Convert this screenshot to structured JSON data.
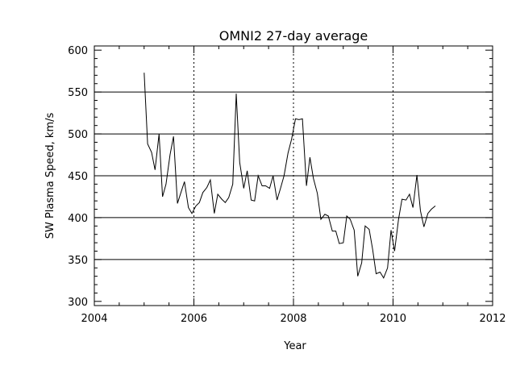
{
  "chart_data": {
    "type": "line",
    "title": "OMNI2 27-day average",
    "xlabel": "Year",
    "ylabel": "SW Plasma Speed, km/s",
    "xlim": [
      2004,
      2012
    ],
    "ylim": [
      295,
      605
    ],
    "x_ticks": [
      2004,
      2006,
      2008,
      2010,
      2012
    ],
    "x_tick_labels": [
      "2004",
      "2006",
      "2008",
      "2010",
      "2012"
    ],
    "y_ticks": [
      300,
      350,
      400,
      450,
      500,
      550,
      600
    ],
    "y_tick_labels": [
      "300",
      "350",
      "400",
      "450",
      "500",
      "550",
      "600"
    ],
    "horizontal_reference_lines": [
      350,
      400,
      450,
      500,
      550
    ],
    "vertical_dotted_lines": [
      2006,
      2008,
      2010
    ],
    "series": [
      {
        "x": [
          2005.0,
          2005.07,
          2005.15,
          2005.22,
          2005.3,
          2005.37,
          2005.44,
          2005.52,
          2005.59,
          2005.67,
          2005.74,
          2005.81,
          2005.89,
          2005.96,
          2006.04,
          2006.11,
          2006.18,
          2006.26,
          2006.33,
          2006.41,
          2006.48,
          2006.56,
          2006.63,
          2006.7,
          2006.78,
          2006.85,
          2006.92,
          2007.0,
          2007.07,
          2007.15,
          2007.22,
          2007.29,
          2007.37,
          2007.44,
          2007.52,
          2007.59,
          2007.67,
          2007.74,
          2007.81,
          2007.89,
          2007.96,
          2008.04,
          2008.11,
          2008.18,
          2008.26,
          2008.33,
          2008.4,
          2008.48,
          2008.55,
          2008.63,
          2008.7,
          2008.78,
          2008.85,
          2008.92,
          2009.0,
          2009.07,
          2009.14,
          2009.22,
          2009.29,
          2009.37,
          2009.44,
          2009.52,
          2009.59,
          2009.66,
          2009.74,
          2009.81,
          2009.89,
          2009.96,
          2010.03,
          2010.11,
          2010.18,
          2010.26,
          2010.33,
          2010.4,
          2010.48,
          2010.55,
          2010.62,
          2010.7,
          2010.77,
          2010.85
        ],
        "values": [
          573,
          488,
          478,
          457,
          500,
          425,
          440,
          475,
          497,
          417,
          430,
          443,
          412,
          405,
          414,
          418,
          430,
          436,
          445,
          405,
          428,
          422,
          418,
          424,
          440,
          548,
          466,
          435,
          456,
          421,
          420,
          450,
          438,
          438,
          435,
          450,
          421,
          435,
          450,
          477,
          493,
          518,
          517,
          518,
          438,
          472,
          447,
          429,
          398,
          404,
          402,
          384,
          384,
          369,
          370,
          402,
          398,
          385,
          330,
          346,
          390,
          386,
          362,
          333,
          335,
          328,
          340,
          385,
          360,
          398,
          422,
          421,
          428,
          412,
          451,
          408,
          389,
          405,
          410,
          414
        ]
      }
    ]
  }
}
